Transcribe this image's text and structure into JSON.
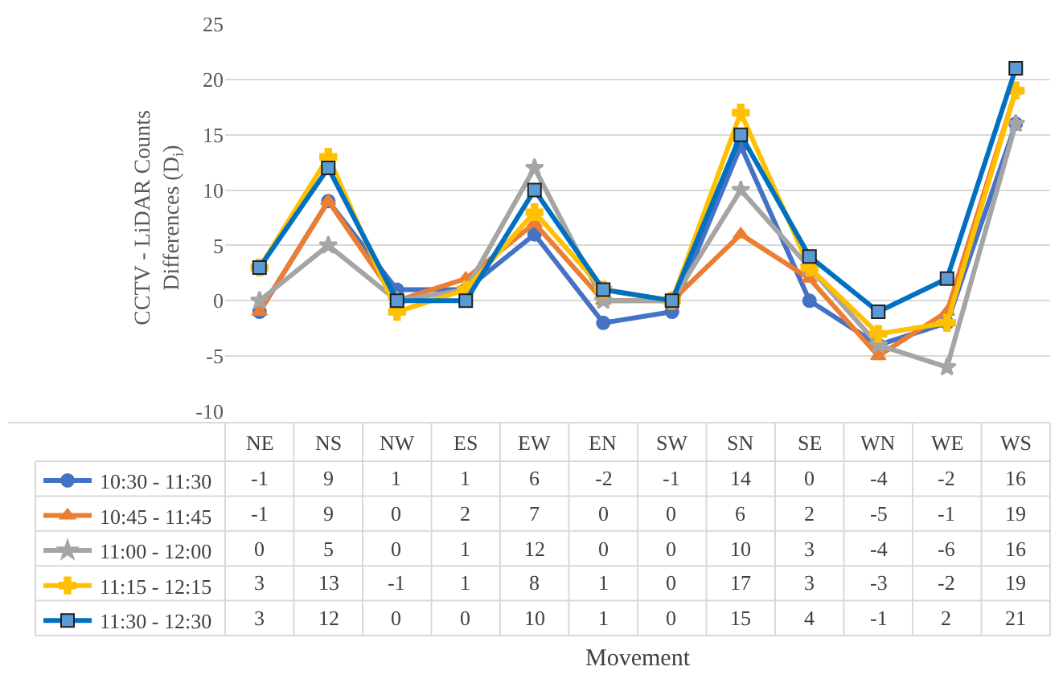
{
  "chart_data": {
    "type": "line",
    "ylabel": "CCTV - LiDAR Counts Differences (D$_{i}$)",
    "annotations": [
      "Movement"
    ],
    "categories": [
      "NE",
      "NS",
      "NW",
      "ES",
      "EW",
      "EN",
      "SW",
      "SN",
      "SE",
      "WN",
      "WE",
      "WS"
    ],
    "ylim": [
      -10,
      25
    ],
    "yticks": [
      -10,
      -5,
      0,
      5,
      10,
      15,
      20,
      25
    ],
    "grid": "y",
    "data_labels": true,
    "legend": "bottom left",
    "line_style": "solid",
    "series": [
      {
        "name": "10:30 - 11:30",
        "color": "#4472c4",
        "marker": "circle",
        "values": [
          -1,
          9,
          1,
          1,
          6,
          -2,
          -1,
          14,
          0,
          -4,
          -2,
          16
        ]
      },
      {
        "name": "10:45 - 11:45",
        "color": "#ed7d31",
        "marker": "triangle",
        "values": [
          -1,
          9,
          0,
          2,
          7,
          0,
          0,
          6,
          2,
          -5,
          -1,
          19
        ]
      },
      {
        "name": "11:00 - 12:00",
        "color": "#a5a5a5",
        "marker": "star",
        "values": [
          0,
          5,
          0,
          1,
          12,
          0,
          0,
          10,
          3,
          -4,
          -6,
          16
        ]
      },
      {
        "name": "11:15 - 12:15",
        "color": "#ffc000",
        "marker": "cross",
        "values": [
          3,
          13,
          -1,
          1,
          8,
          1,
          0,
          17,
          3,
          -3,
          -2,
          19
        ]
      },
      {
        "name": "11:30 - 12:30",
        "color": "#0070c0",
        "marker": "square",
        "values": [
          3,
          12,
          0,
          0,
          10,
          1,
          0,
          15,
          4,
          -1,
          2,
          21
        ]
      }
    ]
  }
}
